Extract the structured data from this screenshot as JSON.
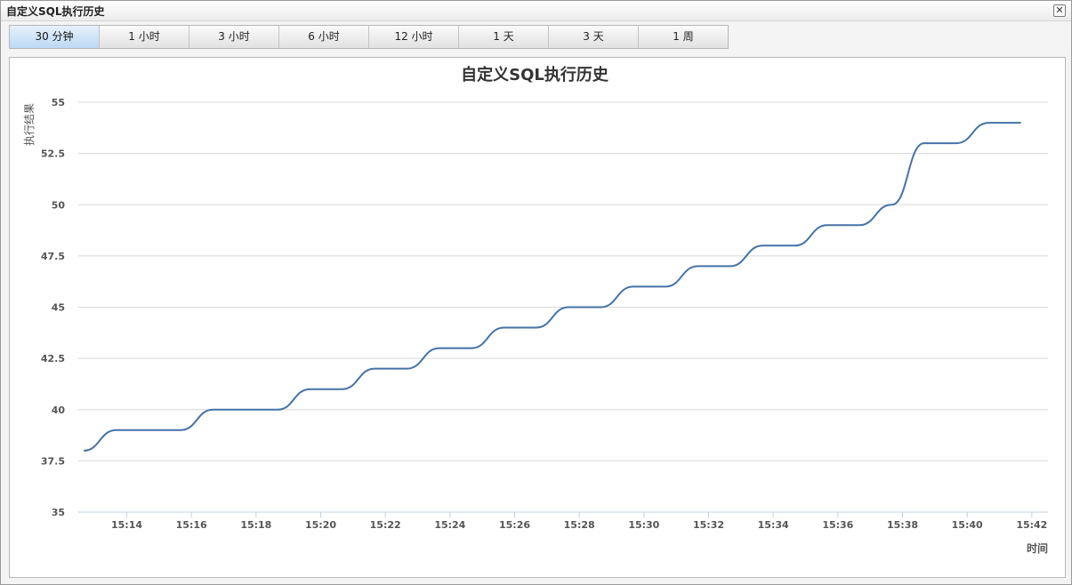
{
  "window": {
    "title": "自定义SQL执行历史"
  },
  "tabs": [
    {
      "label": "30 分钟",
      "active": true
    },
    {
      "label": "1 小时",
      "active": false
    },
    {
      "label": "3 小时",
      "active": false
    },
    {
      "label": "6 小时",
      "active": false
    },
    {
      "label": "12 小时",
      "active": false
    },
    {
      "label": "1 天",
      "active": false
    },
    {
      "label": "3 天",
      "active": false
    },
    {
      "label": "1 周",
      "active": false
    }
  ],
  "chart_data": {
    "type": "line",
    "title": "自定义SQL执行历史",
    "ylabel": "执行结果",
    "xlabel": "时间",
    "ylim": [
      35,
      55
    ],
    "yticks": [
      "35",
      "37.5",
      "40",
      "42.5",
      "45",
      "47.5",
      "50",
      "52.5",
      "55"
    ],
    "xlim": [
      "15:12:30",
      "15:42:30"
    ],
    "xticks": [
      "15:14",
      "15:16",
      "15:18",
      "15:20",
      "15:22",
      "15:24",
      "15:26",
      "15:28",
      "15:30",
      "15:32",
      "15:34",
      "15:36",
      "15:38",
      "15:40",
      "15:42"
    ],
    "grid": true,
    "series_color": "#4572a7",
    "series": [
      {
        "x": [
          "15:12:40",
          "15:13:40",
          "15:14:40",
          "15:15:40",
          "15:16:40",
          "15:17:40",
          "15:18:40",
          "15:19:40",
          "15:20:40",
          "15:21:40",
          "15:22:40",
          "15:23:40",
          "15:24:40",
          "15:25:40",
          "15:26:40",
          "15:27:40",
          "15:28:40",
          "15:29:40",
          "15:30:40",
          "15:31:40",
          "15:32:40",
          "15:33:40",
          "15:34:40",
          "15:35:40",
          "15:36:40",
          "15:37:40",
          "15:38:40",
          "15:39:40",
          "15:40:40",
          "15:41:40"
        ],
        "y": [
          38,
          39,
          39,
          39,
          40,
          40,
          40,
          41,
          41,
          42,
          42,
          43,
          43,
          44,
          44,
          45,
          45,
          46,
          46,
          47,
          47,
          48,
          48,
          49,
          49,
          50,
          53,
          53,
          54,
          54
        ]
      }
    ]
  }
}
